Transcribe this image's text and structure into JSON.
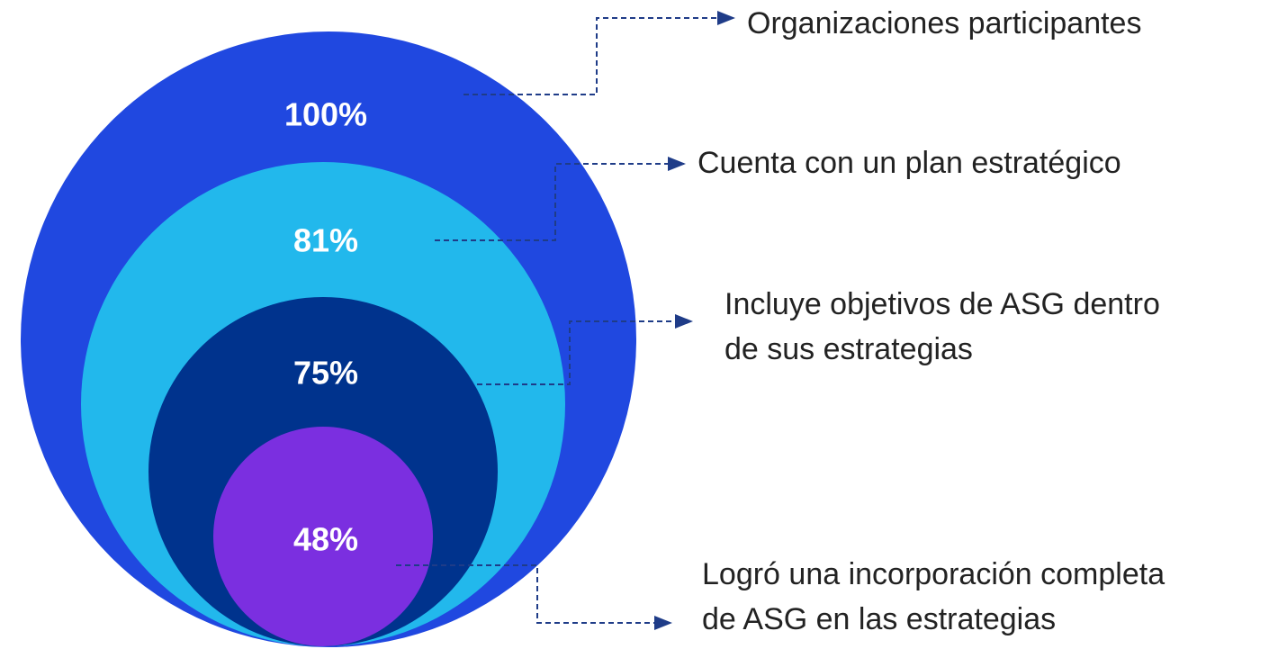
{
  "items": [
    {
      "value": "100%",
      "label": [
        "Organizaciones participantes"
      ]
    },
    {
      "value": "81%",
      "label": [
        "Cuenta con un plan estratégico"
      ]
    },
    {
      "value": "75%",
      "label": [
        "Incluye objetivos de ASG dentro",
        "de sus estrategias"
      ]
    },
    {
      "value": "48%",
      "label": [
        "Logró una incorporación completa",
        "de ASG en las estrategias"
      ]
    }
  ]
}
